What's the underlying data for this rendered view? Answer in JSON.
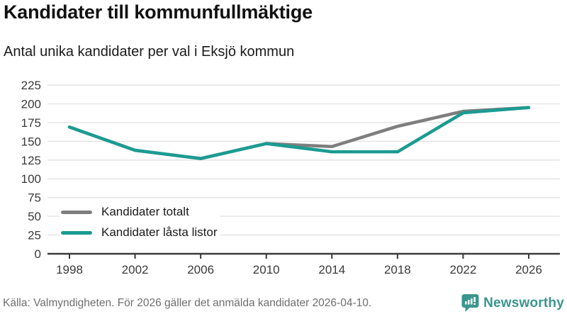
{
  "header": {
    "title": "Kandidater till kommunfullmäktige",
    "subtitle": "Antal unika kandidater per val i Eksjö kommun"
  },
  "chart_data": {
    "type": "line",
    "categories": [
      1998,
      2002,
      2006,
      2010,
      2014,
      2018,
      2022,
      2026
    ],
    "series": [
      {
        "name": "Kandidater totalt",
        "color": "#7e7e7e",
        "values": [
          169,
          138,
          127,
          147,
          143,
          170,
          190,
          195
        ]
      },
      {
        "name": "Kandidater låsta listor",
        "color": "#1b9b91",
        "values": [
          169,
          138,
          127,
          147,
          136,
          136,
          188,
          195
        ]
      }
    ],
    "title": "Kandidater till kommunfullmäktige",
    "subtitle": "Antal unika kandidater per val i Eksjö kommun",
    "xlabel": "",
    "ylabel": "",
    "ylim": [
      0,
      225
    ],
    "ytick_step": 25,
    "grid": true,
    "legend_position": "inside-bottom-left"
  },
  "footer": {
    "source": "Källa: Valmyndigheten. För 2026 gäller det anmälda kandidater 2026-04-10.",
    "brand": "Newsworthy"
  },
  "colors": {
    "accent": "#1b9b91",
    "gray_series": "#7e7e7e",
    "gridline": "#e4e4e4",
    "axis": "#3a3a3a",
    "brand": "#3a968e"
  }
}
